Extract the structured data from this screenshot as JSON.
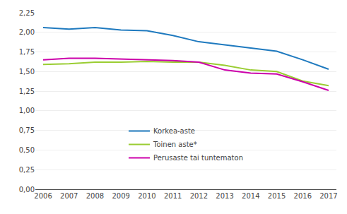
{
  "chart_data": {
    "type": "line",
    "x": [
      2006,
      2007,
      2008,
      2009,
      2010,
      2011,
      2012,
      2013,
      2014,
      2015,
      2016,
      2017
    ],
    "series": [
      {
        "name": "Korkea-aste",
        "color": "#1f7abf",
        "values": [
          2.06,
          2.04,
          2.06,
          2.03,
          2.02,
          1.96,
          1.88,
          1.84,
          1.8,
          1.76,
          1.65,
          1.53
        ]
      },
      {
        "name": "Toinen aste*",
        "color": "#9acd32",
        "values": [
          1.59,
          1.6,
          1.62,
          1.62,
          1.63,
          1.62,
          1.62,
          1.58,
          1.52,
          1.5,
          1.38,
          1.32
        ]
      },
      {
        "name": "Perusaste tai tuntematon",
        "color": "#cc00aa",
        "values": [
          1.65,
          1.67,
          1.67,
          1.66,
          1.65,
          1.64,
          1.62,
          1.52,
          1.48,
          1.47,
          1.37,
          1.26
        ]
      }
    ],
    "xlim": [
      2005.7,
      2017.3
    ],
    "xticks": [
      2006,
      2007,
      2008,
      2009,
      2010,
      2011,
      2012,
      2013,
      2014,
      2015,
      2016,
      2017
    ],
    "ylim": [
      0.0,
      2.25
    ],
    "yticks": [
      {
        "value": 0.0,
        "label": "0,00"
      },
      {
        "value": 0.25,
        "label": "0,25"
      },
      {
        "value": 0.5,
        "label": "0,50"
      },
      {
        "value": 0.75,
        "label": "0,75"
      },
      {
        "value": 1.0,
        "label": "1,00"
      },
      {
        "value": 1.25,
        "label": "1,25"
      },
      {
        "value": 1.5,
        "label": "1,50"
      },
      {
        "value": 1.75,
        "label": "1,75"
      },
      {
        "value": 2.0,
        "label": "2,00"
      },
      {
        "value": 2.25,
        "label": "2,25"
      }
    ],
    "grid": "y",
    "legend": "lower center"
  }
}
